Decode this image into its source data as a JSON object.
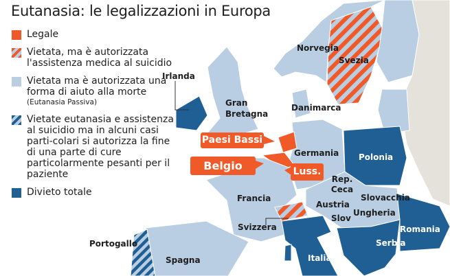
{
  "title": "Eutanasia: le legalizzazioni in Europa",
  "colors": {
    "legale": "#f05a28",
    "light_blue": "#b9cde3",
    "dark_blue": "#1f5f93",
    "non_europe": "#e4e2da",
    "sea": "#ffffff"
  },
  "legend": [
    {
      "label": "Legale",
      "style": "solid-orange"
    },
    {
      "label": "Vietata, ma è autorizzata l'assistenza medica al suicidio",
      "style": "hatched-orange"
    },
    {
      "label": "Vietata ma è autorizzata una forma di aiuto alla morte",
      "note": "(Eutanasia Passiva)",
      "style": "solid-light-blue"
    },
    {
      "label": "Vietate eutanasia e assistenza al suicidio ma in alcuni casi parti-colari si autorizza la fine di una parte di cure particolarmente pesanti per il paziente",
      "style": "hatched-blue"
    },
    {
      "label": "Divieto totale",
      "style": "solid-dark-blue"
    }
  ],
  "countries": {
    "irlanda": "Irlanda",
    "gran_bretagna": "Gran Bretagna",
    "norvegia": "Norvegia",
    "svezia": "Svezia",
    "danimarca": "Danimarca",
    "paesi_bassi": "Paesi Bassi",
    "belgio": "Belgio",
    "lussemburgo": "Luss.",
    "germania": "Germania",
    "polonia": "Polonia",
    "rep_ceca": "Rep. Ceca",
    "francia": "Francia",
    "austria": "Austria",
    "slovacchia": "Slovacchia",
    "svizzera": "Svizzera",
    "slovenia": "Slov",
    "ungheria": "Ungheria",
    "romania": "Romania",
    "portogallo": "Portogallo",
    "spagna": "Spagna",
    "italia": "Italia",
    "serbia": "Serbia"
  },
  "country_status": {
    "Paesi Bassi": "legale",
    "Belgio": "legale",
    "Luss.": "legale",
    "Svezia": "hatched-orange",
    "Svizzera": "hatched-orange",
    "Portogallo": "hatched-blue",
    "Irlanda": "divieto",
    "Polonia": "divieto",
    "Italia": "divieto",
    "Romania": "divieto",
    "Serbia": "divieto"
  }
}
